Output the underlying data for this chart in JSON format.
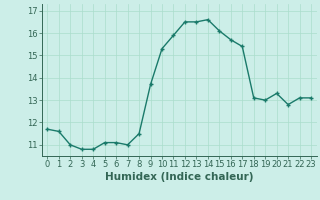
{
  "x": [
    0,
    1,
    2,
    3,
    4,
    5,
    6,
    7,
    8,
    9,
    10,
    11,
    12,
    13,
    14,
    15,
    16,
    17,
    18,
    19,
    20,
    21,
    22,
    23
  ],
  "y": [
    11.7,
    11.6,
    11.0,
    10.8,
    10.8,
    11.1,
    11.1,
    11.0,
    11.5,
    13.7,
    15.3,
    15.9,
    16.5,
    16.5,
    16.6,
    16.1,
    15.7,
    15.4,
    13.1,
    13.0,
    13.3,
    12.8,
    13.1,
    13.1
  ],
  "line_color": "#1a7a6a",
  "marker": "+",
  "marker_size": 3,
  "marker_lw": 1.0,
  "bg_color": "#cceee8",
  "grid_color": "#aaddcc",
  "xlabel": "Humidex (Indice chaleur)",
  "ylim_min": 10.5,
  "ylim_max": 17.3,
  "xlim_min": -0.5,
  "xlim_max": 23.5,
  "yticks": [
    11,
    12,
    13,
    14,
    15,
    16,
    17
  ],
  "xticks": [
    0,
    1,
    2,
    3,
    4,
    5,
    6,
    7,
    8,
    9,
    10,
    11,
    12,
    13,
    14,
    15,
    16,
    17,
    18,
    19,
    20,
    21,
    22,
    23
  ],
  "xlabel_fontsize": 7.5,
  "tick_fontsize": 6.0,
  "line_width": 1.0,
  "spine_color": "#336655"
}
